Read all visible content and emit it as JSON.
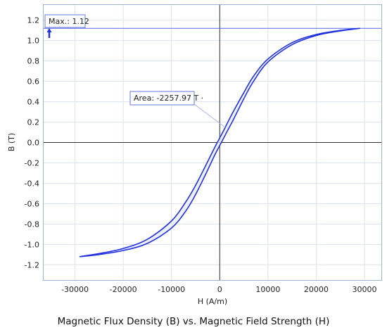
{
  "chart_data": {
    "type": "line",
    "title": "Magnetic Flux Density (B) vs. Magnetic Field Strength (H)",
    "xlabel": "H (A/m)",
    "ylabel": "B (T)",
    "xlim": [
      -36500,
      33500
    ],
    "ylim": [
      -1.35,
      1.35
    ],
    "xticks": [
      -30000,
      -20000,
      -10000,
      0,
      10000,
      20000,
      30000
    ],
    "xtick_labels": [
      "-30000",
      "-20000",
      "-10000",
      "0",
      "10000",
      "20000",
      "30000"
    ],
    "yticks": [
      -1.2,
      -1.0,
      -0.8,
      -0.6,
      -0.4,
      -0.2,
      0.0,
      0.2,
      0.4,
      0.6,
      0.8,
      1.0,
      1.2
    ],
    "ytick_labels": [
      "-1.2",
      "-1.0",
      "-0.8",
      "-0.6",
      "-0.4",
      "-0.2",
      "0.0",
      "0.2",
      "0.4",
      "0.6",
      "0.8",
      "1.0",
      "1.2"
    ],
    "grid": true,
    "series": [
      {
        "color": "#2233dd",
        "x": [
          29000,
          25000,
          20000,
          15000,
          10000,
          7000,
          5000,
          3000,
          2000,
          1000,
          0,
          -1000,
          -2000,
          -3000,
          -5000,
          -7000,
          -10000,
          -15000,
          -20000,
          -25000,
          -29000,
          -25000,
          -20000,
          -15000,
          -10000,
          -7000,
          -5000,
          -3000,
          -2000,
          -1000,
          0,
          1000,
          2000,
          3000,
          5000,
          7000,
          10000,
          15000,
          20000,
          25000,
          29000
        ],
        "y": [
          1.12,
          1.1,
          1.06,
          0.98,
          0.82,
          0.65,
          0.49,
          0.32,
          0.23,
          0.135,
          0.045,
          -0.045,
          -0.14,
          -0.235,
          -0.42,
          -0.58,
          -0.77,
          -0.95,
          -1.04,
          -1.09,
          -1.12,
          -1.1,
          -1.06,
          -0.99,
          -0.84,
          -0.67,
          -0.51,
          -0.32,
          -0.22,
          -0.12,
          -0.03,
          0.06,
          0.15,
          0.24,
          0.43,
          0.6,
          0.79,
          0.96,
          1.05,
          1.095,
          1.12
        ]
      }
    ],
    "max_line_y": 1.12,
    "annotations": {
      "max_label": "Max.: 1.12",
      "area_label": "Area: -2257.97 T ·"
    }
  }
}
